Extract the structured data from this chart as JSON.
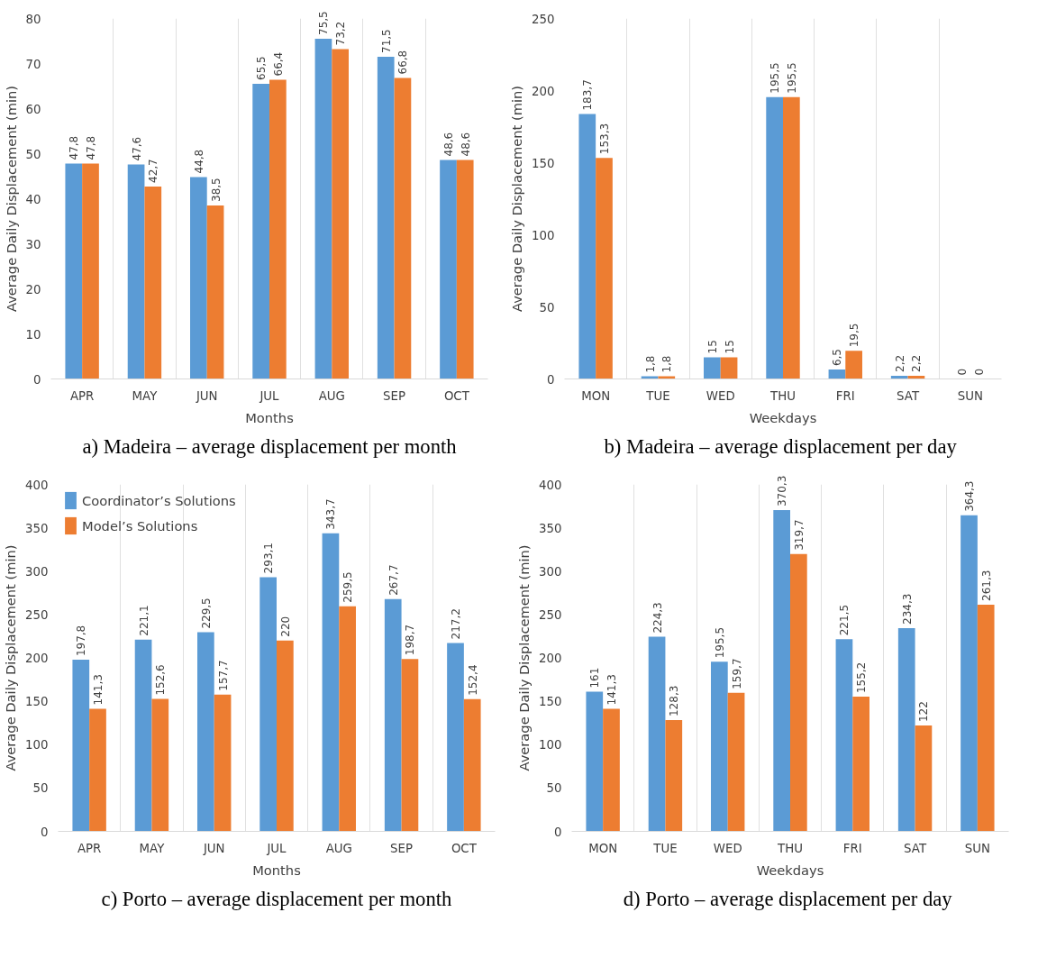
{
  "chart_data": [
    {
      "type": "bar",
      "categories": [
        "APR",
        "MAY",
        "JUN",
        "JUL",
        "AUG",
        "SEP",
        "OCT"
      ],
      "xlabel": "Months",
      "ylabel": "Average Daily Displacement (min)",
      "ylim": [
        0,
        80
      ],
      "yticks": [
        0,
        10,
        20,
        30,
        40,
        50,
        60,
        70,
        80
      ],
      "grid": "x",
      "legend": false,
      "annotations": [
        "a) Madeira – average displacement per month"
      ],
      "series": [
        {
          "color": "#5b9bd5",
          "values": [
            47.8,
            47.6,
            44.8,
            65.5,
            75.5,
            71.5,
            48.6
          ],
          "value_labels": [
            "47,8",
            "47,6",
            "44,8",
            "65,5",
            "75,5",
            "71,5",
            "48,6"
          ]
        },
        {
          "color": "#ed7d31",
          "values": [
            47.8,
            42.7,
            38.5,
            66.4,
            73.2,
            66.8,
            48.6
          ],
          "value_labels": [
            "47,8",
            "42,7",
            "38,5",
            "66,4",
            "73,2",
            "66,8",
            "48,6"
          ]
        }
      ]
    },
    {
      "type": "bar",
      "categories": [
        "MON",
        "TUE",
        "WED",
        "THU",
        "FRI",
        "SAT",
        "SUN"
      ],
      "xlabel": "Weekdays",
      "ylabel": "Average Daily Displacement (min)",
      "ylim": [
        0,
        250
      ],
      "yticks": [
        0,
        50,
        100,
        150,
        200,
        250
      ],
      "grid": "x",
      "legend": false,
      "annotations": [
        "b) Madeira –  average displacement per day"
      ],
      "series": [
        {
          "color": "#5b9bd5",
          "values": [
            183.7,
            1.8,
            15,
            195.5,
            6.5,
            2.2,
            0
          ],
          "value_labels": [
            "183,7",
            "1,8",
            "15",
            "195,5",
            "6,5",
            "2,2",
            "0"
          ]
        },
        {
          "color": "#ed7d31",
          "values": [
            153.3,
            1.8,
            15,
            195.5,
            19.5,
            2.2,
            0
          ],
          "value_labels": [
            "153,3",
            "1,8",
            "15",
            "195,5",
            "19,5",
            "2,2",
            "0"
          ]
        }
      ]
    },
    {
      "type": "bar",
      "categories": [
        "APR",
        "MAY",
        "JUN",
        "JUL",
        "AUG",
        "SEP",
        "OCT"
      ],
      "xlabel": "Months",
      "ylabel": "Average Daily Displacement (min)",
      "ylim": [
        0,
        400
      ],
      "yticks": [
        0,
        50,
        100,
        150,
        200,
        250,
        300,
        350,
        400
      ],
      "grid": "x",
      "legend": "top left",
      "annotations": [
        "c) Porto – average displacement per month"
      ],
      "series": [
        {
          "name": "Coordinator’s Solutions",
          "color": "#5b9bd5",
          "values": [
            197.8,
            221.1,
            229.5,
            293.1,
            343.7,
            267.7,
            217.2
          ],
          "value_labels": [
            "197,8",
            "221,1",
            "229,5",
            "293,1",
            "343,7",
            "267,7",
            "217,2"
          ]
        },
        {
          "name": "Model’s Solutions",
          "color": "#ed7d31",
          "values": [
            141.3,
            152.6,
            157.7,
            220,
            259.5,
            198.7,
            152.4
          ],
          "value_labels": [
            "141,3",
            "152,6",
            "157,7",
            "220",
            "259,5",
            "198,7",
            "152,4"
          ]
        }
      ]
    },
    {
      "type": "bar",
      "categories": [
        "MON",
        "TUE",
        "WED",
        "THU",
        "FRI",
        "SAT",
        "SUN"
      ],
      "xlabel": "Weekdays",
      "ylabel": "Average Daily Displacement (min)",
      "ylim": [
        0,
        400
      ],
      "yticks": [
        0,
        50,
        100,
        150,
        200,
        250,
        300,
        350,
        400
      ],
      "grid": "x",
      "legend": false,
      "annotations": [
        "d) Porto –  average displacement per day"
      ],
      "series": [
        {
          "color": "#5b9bd5",
          "values": [
            161,
            224.3,
            195.5,
            370.3,
            221.5,
            234.3,
            364.3
          ],
          "value_labels": [
            "161",
            "224,3",
            "195,5",
            "370,3",
            "221,5",
            "234,3",
            "364,3"
          ]
        },
        {
          "color": "#ed7d31",
          "values": [
            141.3,
            128.3,
            159.7,
            319.7,
            155.2,
            122,
            261.3
          ],
          "value_labels": [
            "141,3",
            "128,3",
            "159,7",
            "319,7",
            "155,2",
            "122",
            "261,3"
          ]
        }
      ]
    }
  ]
}
